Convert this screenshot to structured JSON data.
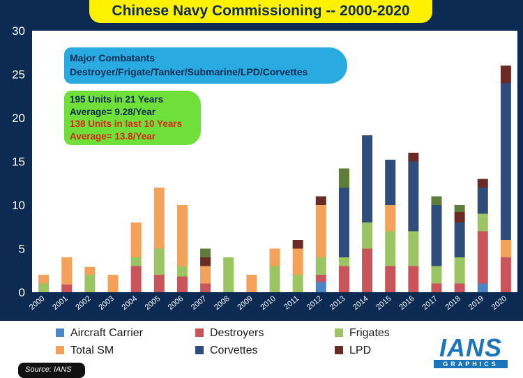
{
  "title": "Chinese Navy Commissioning -- 2000-2020",
  "callouts": {
    "blue_line1": "Major Combatants",
    "blue_line2": "Destroyer/Frigate/Tanker/Submarine/LPD/Corvettes",
    "green_line1": "195 Units in 21 Years",
    "green_line2": "Average= 9.28/Year",
    "green_line3": "138 Units in last 10 Years",
    "green_line4": "Average= 13.8/Year"
  },
  "logo": {
    "main": "IANS",
    "sub": "GRAPHICS"
  },
  "source": "Source: IANS",
  "colors": {
    "background": "#0d2a52",
    "title_bg": "#fff200",
    "aircraft_carrier": "#4a86c5",
    "destroyers": "#c9545a",
    "frigates": "#9bc462",
    "total_sm": "#f4a15a",
    "corvettes": "#2e4d7b",
    "lpd": "#6b2b25"
  },
  "chart_data": {
    "type": "bar",
    "stacked": true,
    "categories": [
      "2000",
      "2001",
      "2002",
      "2003",
      "2004",
      "2005",
      "2006",
      "2007",
      "2008",
      "2009",
      "2010",
      "2011",
      "2012",
      "2013",
      "2014",
      "2015",
      "2016",
      "2017",
      "2018",
      "2019",
      "2020"
    ],
    "series": [
      {
        "name": "Aircraft Carrier",
        "color": "#4a86c5",
        "values": [
          0,
          0,
          0,
          0,
          0,
          0,
          0,
          0,
          0,
          0,
          0,
          0,
          1.2,
          0,
          0,
          0,
          0,
          0,
          0,
          1,
          0
        ]
      },
      {
        "name": "Destroyers",
        "color": "#c9545a",
        "values": [
          0,
          0.9,
          0,
          0,
          3,
          2,
          1.8,
          1,
          0,
          0,
          0,
          0,
          0.8,
          3,
          5,
          3,
          3,
          1,
          1,
          6,
          4
        ]
      },
      {
        "name": "Frigates",
        "color": "#9bc462",
        "values": [
          1,
          0,
          2,
          0,
          1,
          3,
          1.2,
          0,
          4,
          0,
          3,
          2,
          2,
          1,
          3,
          4,
          4,
          2,
          3,
          2,
          0
        ]
      },
      {
        "name": "Total SM",
        "color": "#f4a15a",
        "values": [
          1,
          3.1,
          0.9,
          2,
          4,
          7,
          7,
          2,
          0,
          2,
          2,
          3,
          6,
          0,
          0,
          3,
          0,
          0,
          0,
          0,
          2
        ]
      },
      {
        "name": "Corvettes",
        "color": "#2e4d7b",
        "values": [
          0,
          0,
          0,
          0,
          0,
          0,
          0,
          0,
          0,
          0,
          0,
          0,
          0,
          8,
          10,
          5.2,
          8,
          7,
          4,
          3,
          18
        ]
      },
      {
        "name": "LPD",
        "color": "#6b2b25",
        "values": [
          0,
          0,
          0,
          0,
          0,
          0,
          0,
          1,
          0,
          0,
          0,
          1,
          1,
          0,
          0,
          0,
          1,
          0,
          1.2,
          1,
          2
        ]
      },
      {
        "name": "",
        "color": "#5e7c3a",
        "values": [
          0,
          0,
          0,
          0,
          0,
          0,
          0,
          1,
          0,
          0,
          0,
          0,
          0,
          2.2,
          0,
          0,
          0,
          1,
          0.8,
          0,
          0
        ]
      }
    ],
    "ylim": [
      0,
      30
    ],
    "yticks": [
      0,
      5,
      10,
      15,
      20,
      25,
      30
    ],
    "grid": false,
    "legend_position": "bottom"
  }
}
